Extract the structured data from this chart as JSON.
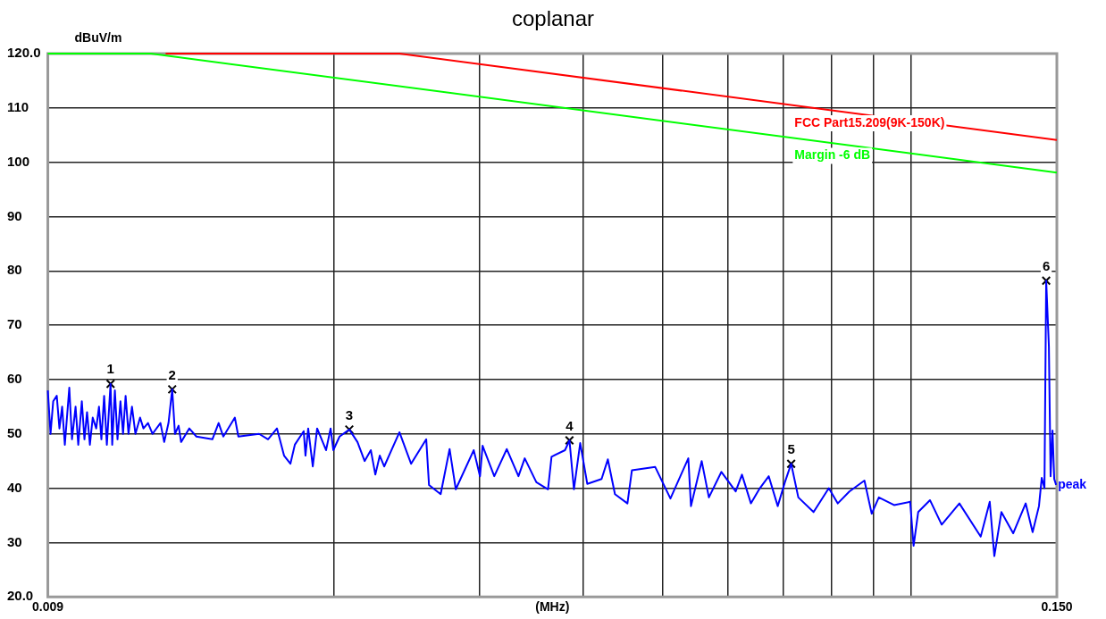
{
  "chart_data": {
    "type": "line",
    "title": "coplanar",
    "xlabel": "(MHz)",
    "ylabel": "dBuV/m",
    "log": "x",
    "grid": true,
    "legend": false,
    "marker": "none",
    "xlim": [
      0.009,
      0.15
    ],
    "xticks": [
      0.009,
      {
        "value": 0.02,
        "label": null
      },
      {
        "value": 0.03,
        "label": null
      },
      {
        "value": 0.04,
        "label": null
      },
      {
        "value": 0.05,
        "label": null
      },
      {
        "value": 0.06,
        "label": null
      },
      {
        "value": 0.07,
        "label": null
      },
      {
        "value": 0.08,
        "label": null
      },
      {
        "value": 0.09,
        "label": null
      },
      {
        "value": 0.1,
        "label": null
      },
      {
        "value": 0.15,
        "label": "0.150"
      }
    ],
    "ylim": [
      20,
      120
    ],
    "yticks": [
      {
        "value": 20,
        "label": "20.0"
      },
      30,
      40,
      50,
      60,
      70,
      80,
      90,
      100,
      110,
      {
        "value": 120,
        "label": "120.0"
      }
    ],
    "series": [
      {
        "name": "FCC Part15.209(9K-150K)",
        "color": "#ff0000",
        "x": [
          0.0125,
          0.024,
          0.15
        ],
        "values": [
          120,
          120,
          104.1
        ]
      },
      {
        "name": "Margin -6 dB",
        "color": "#00ff00",
        "x": [
          0.009,
          0.012,
          0.15
        ],
        "values": [
          120,
          120,
          98.1
        ]
      },
      {
        "name": "peak",
        "color": "#0000ff",
        "x": [
          0.009,
          0.009068,
          0.009136,
          0.009227,
          0.009296,
          0.009366,
          0.009437,
          0.009555,
          0.009627,
          0.009724,
          0.009797,
          0.009895,
          0.009968,
          0.01004,
          0.01012,
          0.0102,
          0.0103,
          0.01038,
          0.01045,
          0.01053,
          0.01061,
          0.01072,
          0.01077,
          0.01085,
          0.01093,
          0.01102,
          0.0111,
          0.01118,
          0.01127,
          0.01138,
          0.01149,
          0.01164,
          0.01175,
          0.0119,
          0.01205,
          0.01232,
          0.01245,
          0.0126,
          0.01273,
          0.01283,
          0.01296,
          0.01305,
          0.01335,
          0.01362,
          0.01424,
          0.01449,
          0.01468,
          0.01516,
          0.01531,
          0.01622,
          0.01663,
          0.01705,
          0.01739,
          0.0177,
          0.01792,
          0.01837,
          0.01846,
          0.0186,
          0.01884,
          0.01907,
          0.01955,
          0.0198,
          0.01995,
          0.0203,
          0.02086,
          0.02134,
          0.02177,
          0.02215,
          0.02243,
          0.02271,
          0.02299,
          0.02399,
          0.02478,
          0.02585,
          0.02605,
          0.02691,
          0.02759,
          0.02807,
          0.02951,
          0.03003,
          0.03025,
          0.03125,
          0.03236,
          0.03343,
          0.03402,
          0.03514,
          0.0363,
          0.03666,
          0.03806,
          0.03854,
          0.03902,
          0.03971,
          0.0405,
          0.04215,
          0.04289,
          0.04375,
          0.0453,
          0.04587,
          0.04895,
          0.05107,
          0.05368,
          0.05408,
          0.05572,
          0.05685,
          0.05887,
          0.06126,
          0.06234,
          0.06392,
          0.06553,
          0.06718,
          0.06888,
          0.07027,
          0.07151,
          0.07295,
          0.07612,
          0.07942,
          0.08142,
          0.08411,
          0.08772,
          0.08951,
          0.09131,
          0.09527,
          0.09964,
          0.1006,
          0.1019,
          0.1053,
          0.1088,
          0.1143,
          0.1213,
          0.1244,
          0.126,
          0.1285,
          0.1328,
          0.1375,
          0.1402,
          0.1427,
          0.1438,
          0.1449,
          0.1456,
          0.1467,
          0.1474,
          0.1482,
          0.1489,
          0.1497
        ],
        "values": [
          58,
          50,
          56,
          57,
          51,
          55,
          48,
          58.5,
          49,
          55,
          48,
          56,
          49,
          54,
          48,
          53,
          51,
          55,
          49,
          57,
          48,
          59.2,
          48,
          58,
          49,
          56,
          50,
          57,
          50,
          55,
          50,
          53,
          51,
          52,
          50,
          52,
          48.5,
          52,
          58.2,
          50,
          51.5,
          48.5,
          51,
          49.5,
          49,
          52,
          49.5,
          53,
          49.5,
          50,
          49,
          51,
          46,
          44.5,
          48,
          50.5,
          46,
          51,
          44,
          51,
          47,
          51,
          47,
          49.5,
          50.8,
          48.5,
          45,
          47,
          42.5,
          46,
          44,
          50.3,
          44.5,
          49,
          40.6,
          38.9,
          47.2,
          39.8,
          47,
          42.2,
          47.8,
          42.2,
          47.2,
          42.2,
          45.5,
          41.1,
          39.8,
          45.8,
          47,
          48.8,
          39.8,
          48.3,
          40.8,
          41.7,
          45.3,
          38.9,
          37.2,
          43.3,
          43.9,
          38.1,
          45.5,
          36.7,
          45,
          38.3,
          43,
          39.4,
          42.5,
          37.2,
          40,
          42.2,
          36.7,
          41.1,
          44.5,
          38.3,
          35.6,
          40,
          37.2,
          39.4,
          41.4,
          35.3,
          38.3,
          36.9,
          37.5,
          29.4,
          35.6,
          37.8,
          33.3,
          37.2,
          31.1,
          37.5,
          27.5,
          35.6,
          31.7,
          37.2,
          31.9,
          36.7,
          41.9,
          40,
          78.2,
          66.1,
          42.2,
          50.6,
          41.7,
          40.6
        ]
      },
      {
        "type": "scatter",
        "marker": "cross",
        "color": "#000000",
        "x": [
          0.01072,
          0.01273,
          0.02086,
          0.03854,
          0.07151,
          0.1456
        ],
        "values": [
          59.2,
          58.2,
          50.8,
          48.8,
          44.5,
          78.2
        ]
      }
    ],
    "annotations": [
      {
        "text": "1",
        "x": 0.01072,
        "y": 59.2
      },
      {
        "text": "2",
        "x": 0.01273,
        "y": 58.2
      },
      {
        "text": "3",
        "x": 0.02086,
        "y": 50.8
      },
      {
        "text": "4",
        "x": 0.03854,
        "y": 48.8
      },
      {
        "text": "5",
        "x": 0.07151,
        "y": 44.5
      },
      {
        "text": "6",
        "x": 0.1456,
        "y": 78.2
      }
    ]
  }
}
